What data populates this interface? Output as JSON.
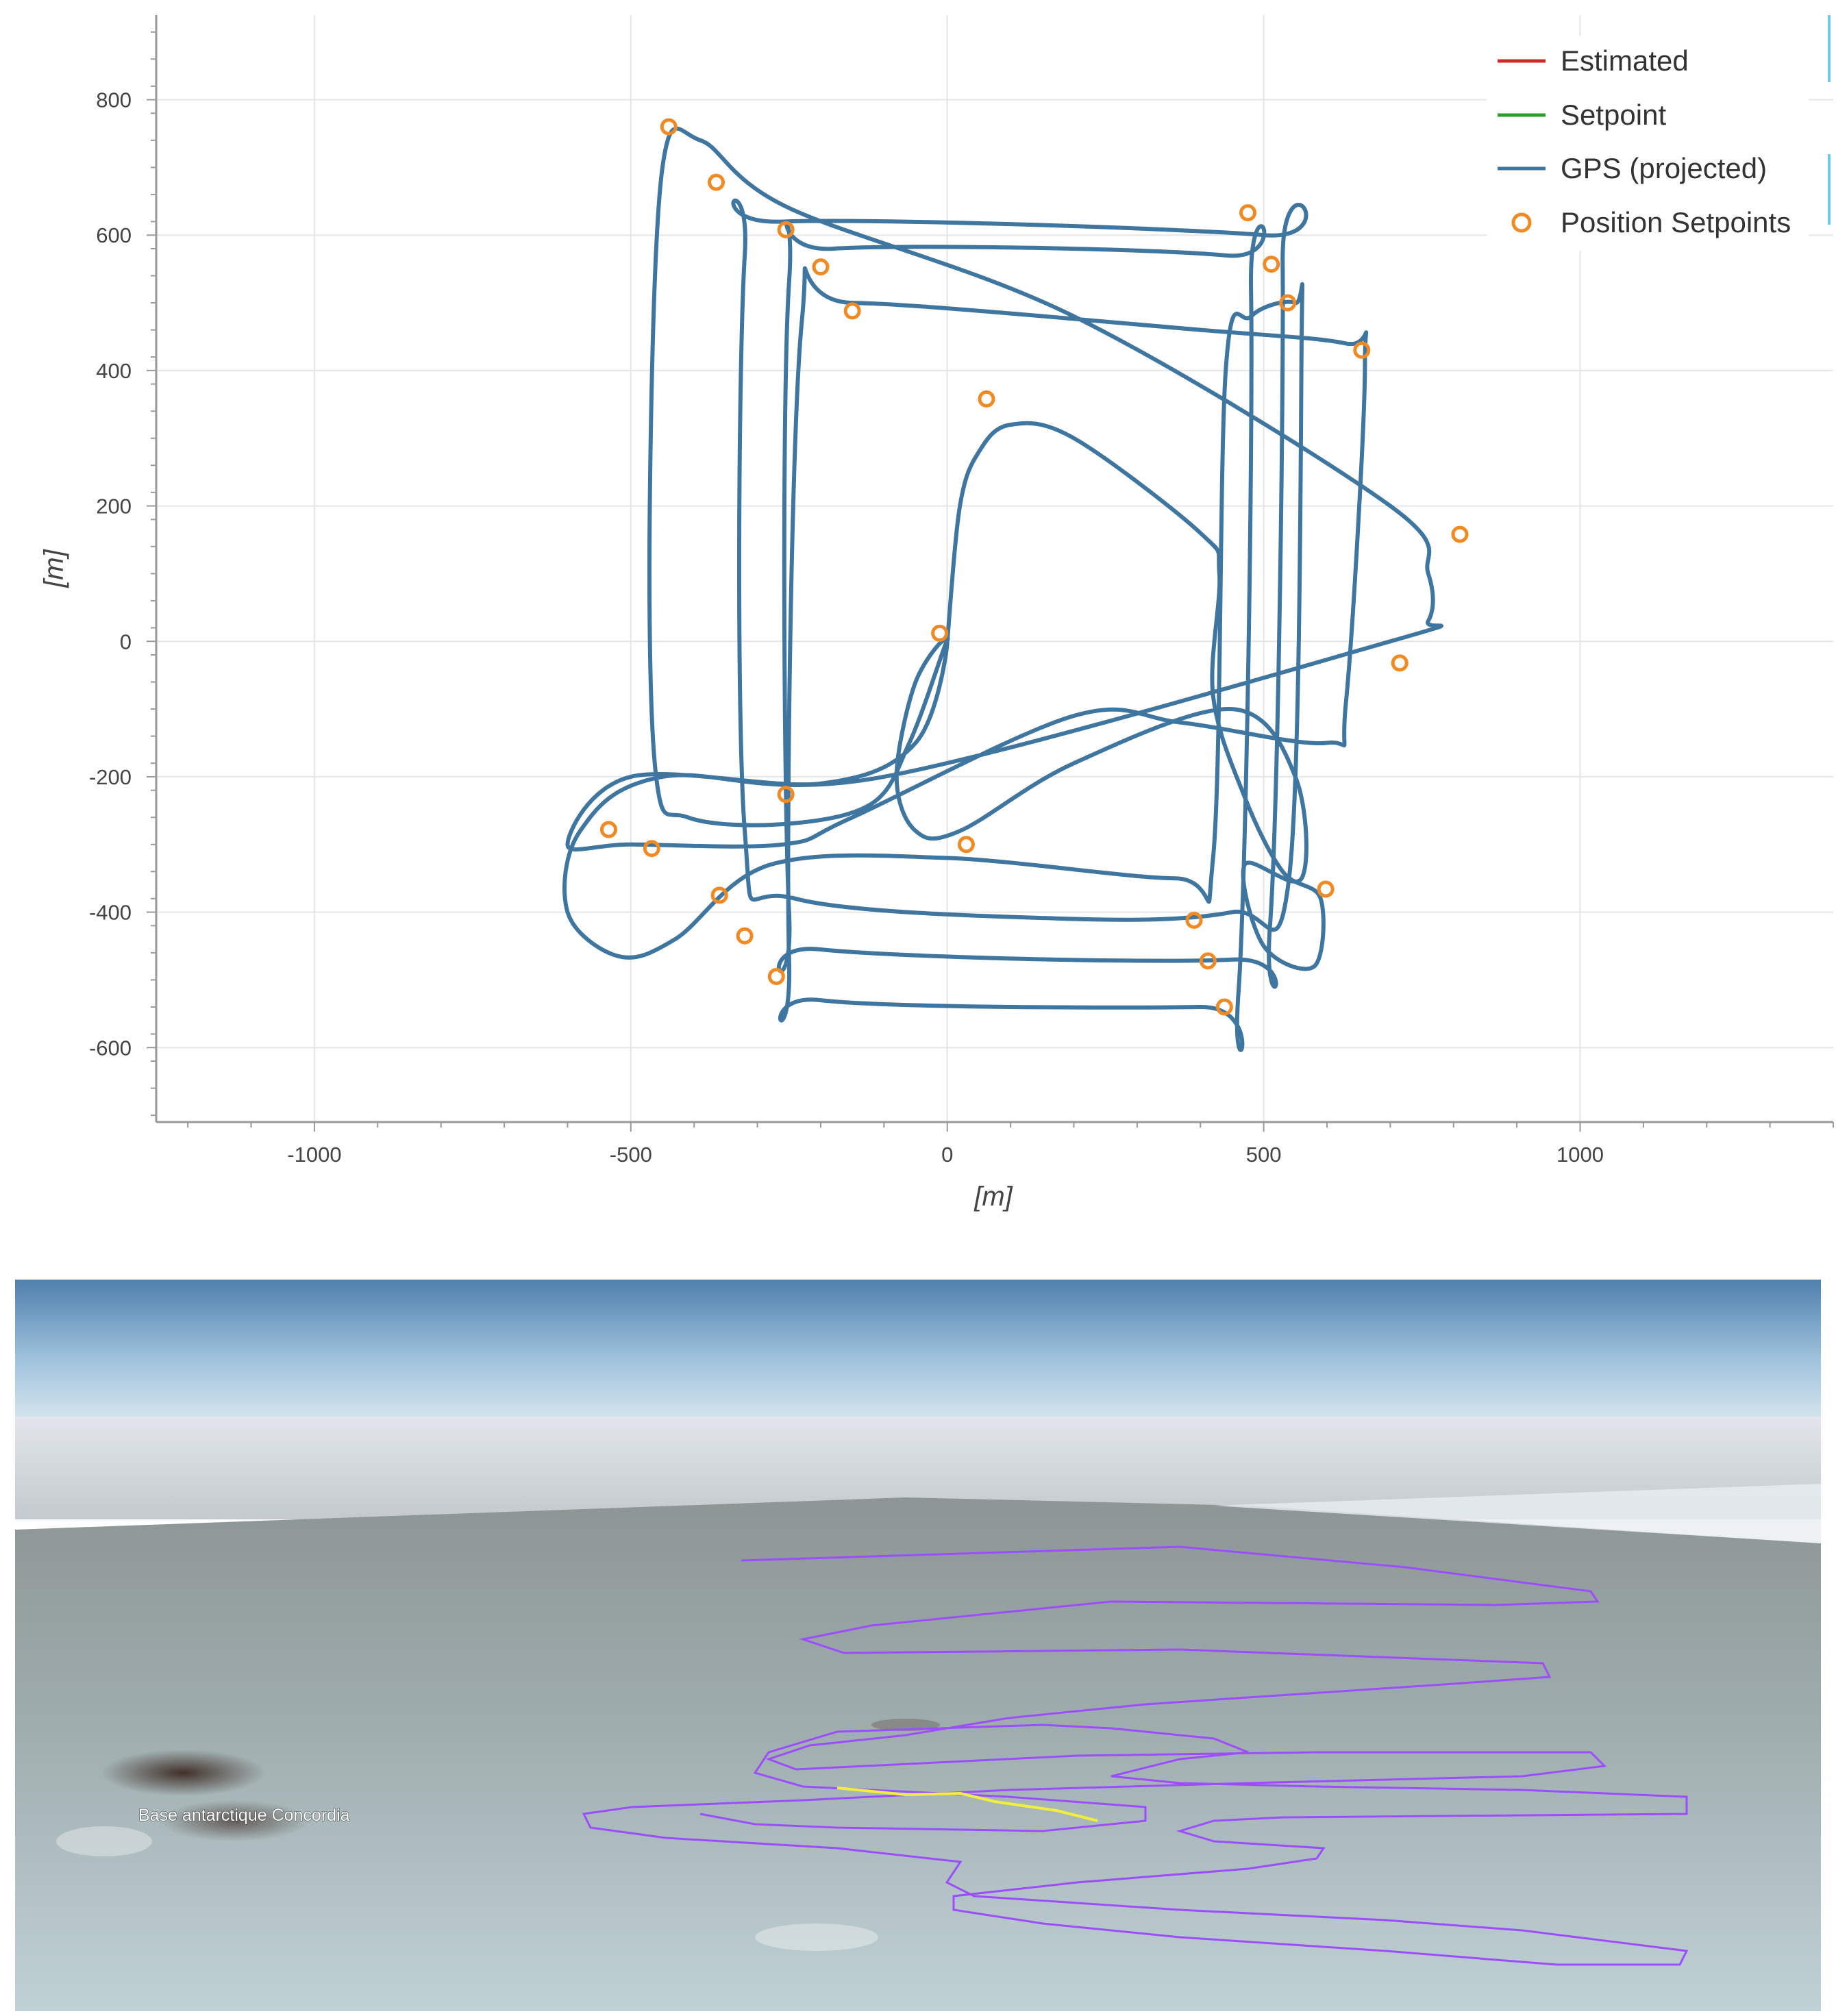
{
  "chart_data": {
    "type": "line",
    "title": "",
    "xlabel": "[m]",
    "ylabel": "[m]",
    "xlim": [
      -1250,
      1400
    ],
    "ylim": [
      -710,
      925
    ],
    "x_ticks": [
      -1000,
      -500,
      0,
      500,
      1000
    ],
    "y_ticks": [
      -600,
      -400,
      -200,
      0,
      200,
      400,
      600,
      800
    ],
    "grid": true,
    "legend_position": "top-right",
    "colors": {
      "estimated": "#d62728",
      "setpoint": "#2ca02c",
      "gps": "#3f76a0",
      "position_setpoints": "#f08a24"
    },
    "legend": [
      {
        "label": "Estimated",
        "kind": "line",
        "color": "#d62728"
      },
      {
        "label": "Setpoint",
        "kind": "line",
        "color": "#2ca02c"
      },
      {
        "label": "GPS (projected)",
        "kind": "line",
        "color": "#3f76a0"
      },
      {
        "label": "Position Setpoints",
        "kind": "circle",
        "color": "#f08a24"
      }
    ],
    "series": [
      {
        "name": "GPS (projected)",
        "points": [
          [
            0,
            0
          ],
          [
            -5,
            -10
          ],
          [
            -60,
            -150
          ],
          [
            -120,
            -240
          ],
          [
            -260,
            -270
          ],
          [
            -410,
            -260
          ],
          [
            -460,
            -200
          ],
          [
            -470,
            200
          ],
          [
            -450,
            700
          ],
          [
            -390,
            740
          ],
          [
            -250,
            640
          ],
          [
            200,
            480
          ],
          [
            700,
            200
          ],
          [
            760,
            100
          ],
          [
            760,
            30
          ],
          [
            700,
            0
          ],
          [
            -100,
            -200
          ],
          [
            -450,
            -200
          ],
          [
            -580,
            -280
          ],
          [
            -600,
            -400
          ],
          [
            -520,
            -465
          ],
          [
            -430,
            -440
          ],
          [
            -280,
            -330
          ],
          [
            0,
            -320
          ],
          [
            360,
            -350
          ],
          [
            420,
            -320
          ],
          [
            440,
            400
          ],
          [
            480,
            480
          ],
          [
            550,
            500
          ],
          [
            560,
            450
          ],
          [
            540,
            -350
          ],
          [
            450,
            -400
          ],
          [
            200,
            -410
          ],
          [
            -240,
            -380
          ],
          [
            -320,
            -280
          ],
          [
            -320,
            570
          ],
          [
            -260,
            620
          ],
          [
            500,
            600
          ],
          [
            530,
            560
          ],
          [
            510,
            -420
          ],
          [
            450,
            -470
          ],
          [
            -200,
            -455
          ],
          [
            -250,
            -400
          ],
          [
            -250,
            530
          ],
          [
            -180,
            580
          ],
          [
            440,
            570
          ],
          [
            480,
            520
          ],
          [
            460,
            -520
          ],
          [
            400,
            -540
          ],
          [
            -200,
            -530
          ],
          [
            -250,
            -470
          ],
          [
            -230,
            470
          ],
          [
            -150,
            500
          ],
          [
            400,
            460
          ],
          [
            630,
            440
          ],
          [
            660,
            410
          ],
          [
            630,
            -90
          ],
          [
            600,
            -150
          ],
          [
            370,
            -120
          ],
          [
            200,
            -110
          ],
          [
            -150,
            -260
          ],
          [
            -260,
            -300
          ],
          [
            -500,
            -300
          ],
          [
            -600,
            -300
          ],
          [
            -500,
            -200
          ],
          [
            -200,
            -210
          ],
          [
            -50,
            -150
          ],
          [
            0,
            0
          ],
          [
            -50,
            -60
          ],
          [
            -80,
            -200
          ],
          [
            -50,
            -280
          ],
          [
            20,
            -280
          ],
          [
            200,
            -180
          ],
          [
            450,
            -100
          ],
          [
            550,
            -200
          ],
          [
            560,
            -350
          ],
          [
            470,
            -330
          ],
          [
            500,
            -450
          ],
          [
            580,
            -480
          ],
          [
            590,
            -380
          ],
          [
            530,
            -340
          ],
          [
            470,
            -230
          ],
          [
            420,
            -80
          ],
          [
            430,
            100
          ],
          [
            400,
            160
          ],
          [
            200,
            300
          ],
          [
            100,
            320
          ],
          [
            50,
            280
          ],
          [
            20,
            200
          ],
          [
            0,
            0
          ]
        ]
      },
      {
        "name": "Position Setpoints",
        "kind": "scatter",
        "points": [
          [
            -440,
            760
          ],
          [
            -365,
            678
          ],
          [
            -255,
            608
          ],
          [
            -200,
            553
          ],
          [
            -150,
            488
          ],
          [
            475,
            633
          ],
          [
            512,
            557
          ],
          [
            538,
            500
          ],
          [
            655,
            430
          ],
          [
            62,
            358
          ],
          [
            810,
            158
          ],
          [
            -12,
            12
          ],
          [
            715,
            -32
          ],
          [
            -255,
            -226
          ],
          [
            -535,
            -278
          ],
          [
            -467,
            -306
          ],
          [
            30,
            -300
          ],
          [
            -360,
            -375
          ],
          [
            -320,
            -435
          ],
          [
            -270,
            -495
          ],
          [
            598,
            -366
          ],
          [
            390,
            -412
          ],
          [
            412,
            -472
          ],
          [
            438,
            -540
          ]
        ]
      }
    ]
  },
  "photo": {
    "place_label": "Base antarctique Concordia",
    "colors": {
      "flight_track": "#9c4dff",
      "track_highlight": "#f2ef3c"
    }
  }
}
